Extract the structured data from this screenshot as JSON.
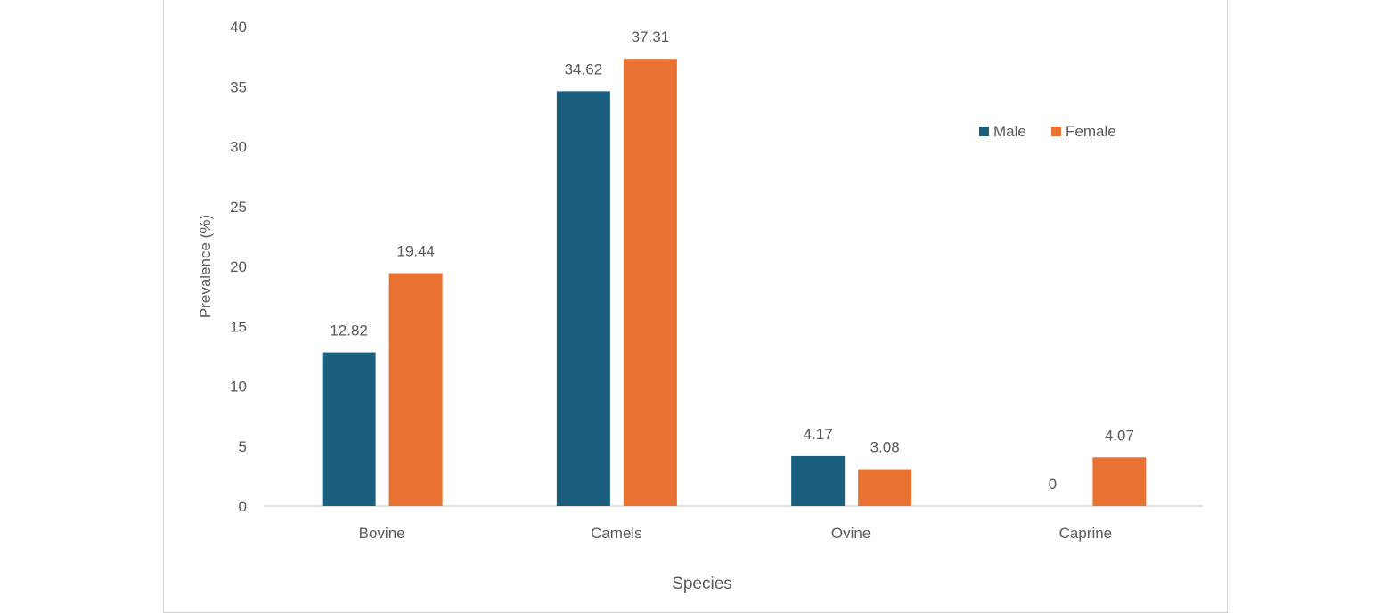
{
  "chart_data": {
    "type": "bar",
    "title": "",
    "xlabel": "Species",
    "ylabel": "Prevalence (%)",
    "ylim": [
      0,
      40
    ],
    "yticks": [
      0,
      5,
      10,
      15,
      20,
      25,
      30,
      35,
      40
    ],
    "categories": [
      "Bovine",
      "Camels",
      "Ovine",
      "Caprine"
    ],
    "series": [
      {
        "name": "Male",
        "color": "#1b5f7f",
        "values": [
          12.82,
          34.62,
          4.17,
          0
        ],
        "labels": [
          "12.82",
          "34.62",
          "4.17",
          "0"
        ]
      },
      {
        "name": "Female",
        "color": "#e97132",
        "values": [
          19.44,
          37.31,
          3.08,
          4.07
        ],
        "labels": [
          "19.44",
          "37.31",
          "3.08",
          "4.07"
        ]
      }
    ],
    "legend": "top-right",
    "grid": false
  }
}
